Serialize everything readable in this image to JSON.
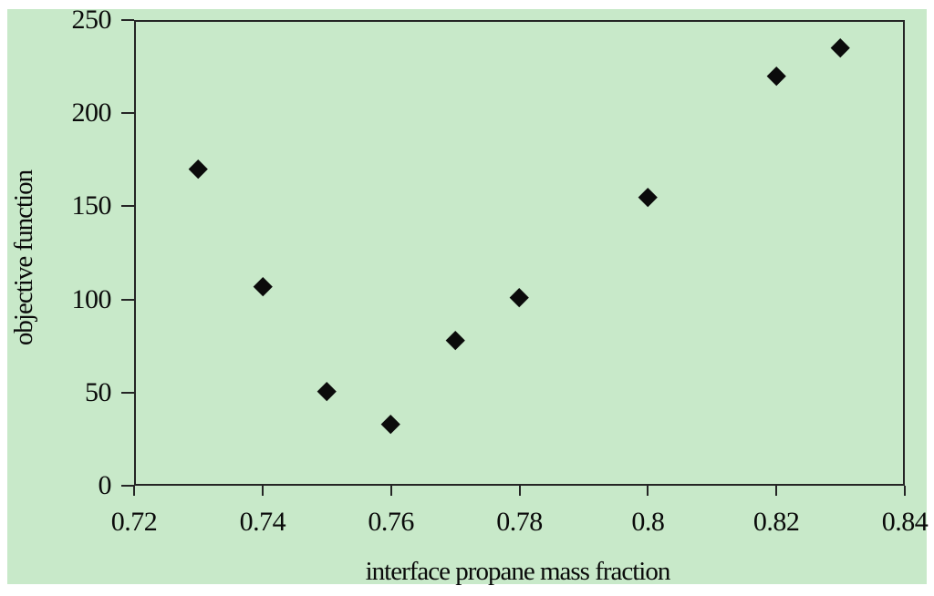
{
  "page": {
    "background": "#ffffff"
  },
  "chart_data": {
    "type": "scatter",
    "title": "",
    "xlabel": "interface propane mass fraction",
    "ylabel": "objective function",
    "xlim": [
      0.72,
      0.84
    ],
    "ylim": [
      0,
      250
    ],
    "grid": false,
    "legend": "none",
    "chart_bg": "#c8e9c9",
    "axis_color": "#252525",
    "marker": "diamond",
    "marker_color": "#0b0b0b",
    "x_ticks": [
      {
        "value": 0.72,
        "label": "0.72"
      },
      {
        "value": 0.74,
        "label": "0.74"
      },
      {
        "value": 0.76,
        "label": "0.76"
      },
      {
        "value": 0.78,
        "label": "0.78"
      },
      {
        "value": 0.8,
        "label": "0.8"
      },
      {
        "value": 0.82,
        "label": "0.82"
      },
      {
        "value": 0.84,
        "label": "0.84"
      }
    ],
    "y_ticks": [
      {
        "value": 0,
        "label": "0"
      },
      {
        "value": 50,
        "label": "50"
      },
      {
        "value": 100,
        "label": "100"
      },
      {
        "value": 150,
        "label": "150"
      },
      {
        "value": 200,
        "label": "200"
      },
      {
        "value": 250,
        "label": "250"
      }
    ],
    "points": [
      {
        "x": 0.73,
        "y": 170
      },
      {
        "x": 0.74,
        "y": 107
      },
      {
        "x": 0.75,
        "y": 51
      },
      {
        "x": 0.76,
        "y": 33
      },
      {
        "x": 0.77,
        "y": 78
      },
      {
        "x": 0.78,
        "y": 101
      },
      {
        "x": 0.8,
        "y": 155
      },
      {
        "x": 0.82,
        "y": 220
      },
      {
        "x": 0.83,
        "y": 235
      }
    ]
  }
}
